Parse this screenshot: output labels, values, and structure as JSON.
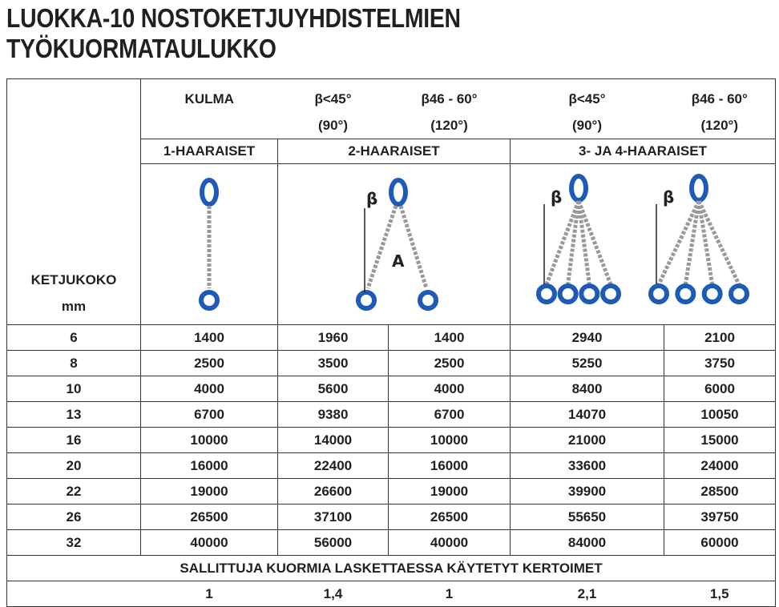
{
  "title": {
    "line1": "LUOKKA-10 NOSTOKETJUYHDISTELMIEN",
    "line2": "TYÖKUORMATAULUKKO"
  },
  "header": {
    "size_label": "KETJUKOKO",
    "size_unit": "mm",
    "angle_label": "KULMA",
    "angles": [
      {
        "a": "β<45°",
        "b": "(90°)"
      },
      {
        "a": "β46 - 60°",
        "b": "(120°)"
      },
      {
        "a": "β<45°",
        "b": "(90°)"
      },
      {
        "a": "β46 - 60°",
        "b": "(120°)"
      }
    ],
    "groups": [
      "1-HAARAISET",
      "2-HAARAISET",
      "3- JA 4-HAARAISET"
    ]
  },
  "diagram_labels": {
    "beta": "β",
    "angle_a": "A"
  },
  "chain_color": "#1e5bb8",
  "rows": [
    [
      "6",
      "1400",
      "1960",
      "1400",
      "2940",
      "2100"
    ],
    [
      "8",
      "2500",
      "3500",
      "2500",
      "5250",
      "3750"
    ],
    [
      "10",
      "4000",
      "5600",
      "4000",
      "8400",
      "6000"
    ],
    [
      "13",
      "6700",
      "9380",
      "6700",
      "14070",
      "10050"
    ],
    [
      "16",
      "10000",
      "14000",
      "10000",
      "21000",
      "15000"
    ],
    [
      "20",
      "16000",
      "22400",
      "16000",
      "33600",
      "24000"
    ],
    [
      "22",
      "19000",
      "26600",
      "19000",
      "39900",
      "28500"
    ],
    [
      "26",
      "26500",
      "37100",
      "26500",
      "55650",
      "39750"
    ],
    [
      "32",
      "40000",
      "56000",
      "40000",
      "84000",
      "60000"
    ]
  ],
  "footer": {
    "label": "SALLITTUJA KUORMIA LASKETTAESSA KÄYTETYT KERTOIMET",
    "factors": [
      "1",
      "1,4",
      "1",
      "2,1",
      "1,5"
    ]
  }
}
